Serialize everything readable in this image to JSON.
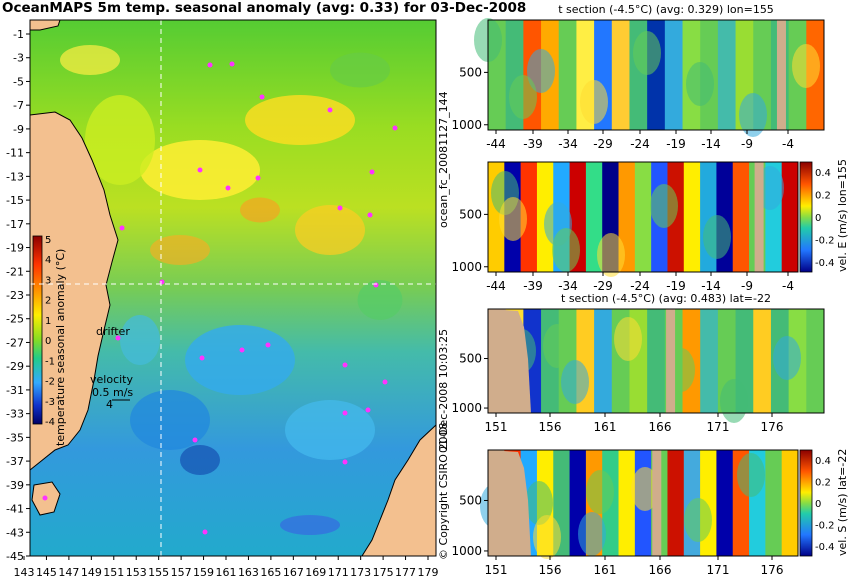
{
  "title": "OceanMAPS 5m temp. seasonal anomaly (avg: 0.33) for 03-Dec-2008",
  "map": {
    "lat_ticks": [
      "-1",
      "-3",
      "-5",
      "-7",
      "-9",
      "-11",
      "-13",
      "-15",
      "-17",
      "-19",
      "-21",
      "-23",
      "-25",
      "-27",
      "-29",
      "-31",
      "-33",
      "-35",
      "-37",
      "-39",
      "-41",
      "-43",
      "-45"
    ],
    "lon_ticks": [
      "143",
      "145",
      "147",
      "149",
      "151",
      "153",
      "155",
      "157",
      "159",
      "161",
      "163",
      "165",
      "167",
      "169",
      "171",
      "173",
      "175",
      "177",
      "179"
    ],
    "colorbar_ticks": [
      "5",
      "4",
      "3",
      "2",
      "1",
      "0",
      "-1",
      "-2",
      "-3",
      "-4"
    ],
    "colorbar_label": "temperature seasonal anomaly (°C)",
    "drifter_label": "drifter",
    "velocity_label": "velocity",
    "velocity_value": "0.5 m/s",
    "velocity_scale": "4"
  },
  "side_labels": {
    "file_id": "ocean_fc_20081127_144",
    "run_time": "01-Dec-2008 10:03:25",
    "copyright": "© Copyright CSIRO 2008"
  },
  "panels": [
    {
      "title": "t section (-4.5°C) (avg: 0.329) lon=155",
      "x_ticks": [
        "-44",
        "-39",
        "-34",
        "-29",
        "-24",
        "-19",
        "-14",
        "-9",
        "-4"
      ],
      "y_ticks": [
        "500",
        "1000"
      ],
      "right_label": "",
      "right_ticks": []
    },
    {
      "title": "",
      "x_ticks": [
        "-44",
        "-39",
        "-34",
        "-29",
        "-24",
        "-19",
        "-14",
        "-9",
        "-4"
      ],
      "y_ticks": [
        "500",
        "1000"
      ],
      "right_label": "vel. E (m/s) lon=155",
      "right_ticks": [
        "0.4",
        "0.2",
        "0",
        "-0.2",
        "-0.4"
      ]
    },
    {
      "title": "t section (-4.5°C) (avg: 0.483) lat=-22",
      "x_ticks": [
        "151",
        "156",
        "161",
        "166",
        "171",
        "176"
      ],
      "y_ticks": [
        "500",
        "1000"
      ],
      "right_label": "",
      "right_ticks": []
    },
    {
      "title": "",
      "x_ticks": [
        "151",
        "156",
        "161",
        "166",
        "171",
        "176"
      ],
      "y_ticks": [
        "500",
        "1000"
      ],
      "right_label": "vel. S (m/s) lat=-22",
      "right_ticks": [
        "0.4",
        "0.2",
        "0",
        "-0.2",
        "-0.4"
      ]
    }
  ],
  "chart_data": [
    {
      "type": "heatmap",
      "title": "OceanMAPS 5m temp. seasonal anomaly (avg: 0.33) for 03-Dec-2008",
      "xlabel": "",
      "ylabel": "",
      "xlim": [
        143,
        180
      ],
      "ylim": [
        -45,
        0
      ],
      "colorbar": {
        "label": "temperature seasonal anomaly (°C)",
        "range": [
          -4,
          5
        ]
      },
      "annotations": [
        "drifter",
        "velocity",
        "0.5 m/s",
        "4"
      ]
    },
    {
      "type": "heatmap",
      "title": "t section (-4.5°C) (avg: 0.329) lon=155",
      "xlim": [
        -45,
        0
      ],
      "ylim": [
        1050,
        0
      ]
    },
    {
      "type": "heatmap",
      "title": "",
      "xlim": [
        -45,
        0
      ],
      "ylim": [
        1050,
        0
      ],
      "colorbar": {
        "label": "vel. E (m/s) lon=155",
        "range": [
          -0.4,
          0.4
        ]
      }
    },
    {
      "type": "heatmap",
      "title": "t section (-4.5°C) (avg: 0.483) lat=-22",
      "xlim": [
        150,
        180
      ],
      "ylim": [
        1050,
        0
      ]
    },
    {
      "type": "heatmap",
      "title": "",
      "xlim": [
        150,
        180
      ],
      "ylim": [
        1050,
        0
      ],
      "colorbar": {
        "label": "vel. S (m/s) lat=-22",
        "range": [
          -0.4,
          0.4
        ]
      }
    }
  ]
}
